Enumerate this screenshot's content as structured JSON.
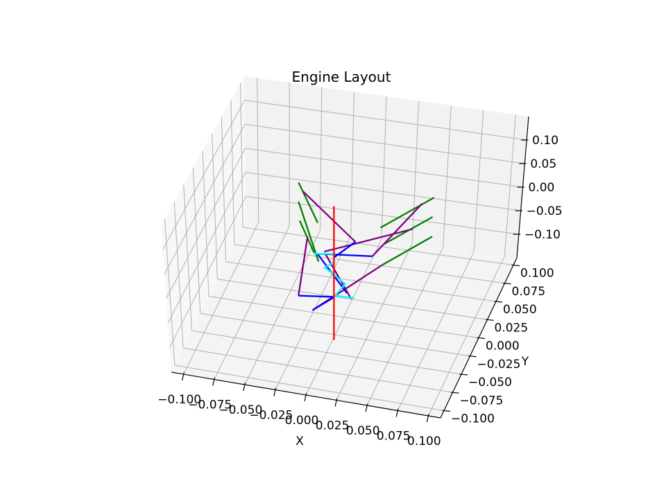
{
  "chart_data": {
    "type": "line3d",
    "title": "Engine Layout",
    "xlabel": "X",
    "ylabel": "Y",
    "zlabel": "",
    "xlim": [
      -0.11,
      0.11
    ],
    "ylim": [
      -0.11,
      0.11
    ],
    "zlim": [
      -0.15,
      0.15
    ],
    "grid": true,
    "x_ticks": [
      -0.1,
      -0.075,
      -0.05,
      -0.025,
      0.0,
      0.025,
      0.05,
      0.075,
      0.1
    ],
    "x_tick_labels": [
      "−0.100",
      "−0.075",
      "−0.050",
      "−0.025",
      "0.000",
      "0.025",
      "0.050",
      "0.075",
      "0.100"
    ],
    "y_ticks": [
      -0.1,
      -0.075,
      -0.05,
      -0.025,
      0.0,
      0.025,
      0.05,
      0.075,
      0.1
    ],
    "y_tick_labels": [
      "−0.100",
      "−0.075",
      "−0.050",
      "−0.025",
      "0.000",
      "0.025",
      "0.050",
      "0.075",
      "0.100"
    ],
    "z_ticks": [
      -0.1,
      -0.05,
      0.0,
      0.05,
      0.1
    ],
    "z_tick_labels": [
      "−0.10",
      "−0.05",
      "0.00",
      "0.05",
      "0.10"
    ],
    "series": [
      {
        "color": "#008000",
        "segments": [
          [
            [
              -0.056,
              0.112,
              0
            ],
            [
              -0.029,
              0.061,
              0
            ]
          ],
          [
            [
              -0.05,
              0.086,
              0
            ],
            [
              -0.016,
              0.008,
              0
            ]
          ],
          [
            [
              -0.043,
              0.06,
              0
            ],
            [
              -0.022,
              0.019,
              0
            ]
          ],
          [
            [
              0.019,
              0.068,
              0
            ],
            [
              0.049,
              0.121,
              0
            ]
          ],
          [
            [
              0.026,
              0.045,
              0
            ],
            [
              0.054,
              0.094,
              0
            ]
          ],
          [
            [
              0.032,
              0.017,
              0
            ],
            [
              0.06,
              0.067,
              0
            ]
          ]
        ]
      },
      {
        "color": "#800080",
        "segments": [
          [
            [
              -0.05,
              0.101,
              0
            ],
            [
              0.005,
              0.043,
              0
            ]
          ],
          [
            [
              -0.015,
              0.023,
              0
            ],
            [
              0.043,
              0.073,
              0
            ]
          ],
          [
            [
              0.022,
              0.027,
              0
            ],
            [
              0.042,
              0.11,
              0
            ]
          ],
          [
            [
              -0.032,
              0.039,
              0
            ],
            [
              -0.02,
              -0.043,
              0
            ]
          ],
          [
            [
              -0.005,
              -0.06,
              0
            ],
            [
              0.032,
              0.017,
              0
            ]
          ],
          [
            [
              -0.014,
              0.021,
              0
            ],
            [
              0.02,
              -0.036,
              0
            ]
          ]
        ]
      },
      {
        "color": "#0000ff",
        "segments": [
          [
            [
              -0.022,
              0.018,
              0
            ],
            [
              0.022,
              0.027,
              0
            ]
          ],
          [
            [
              0.005,
              0.043,
              0
            ],
            [
              -0.006,
              0.017,
              0
            ]
          ],
          [
            [
              -0.019,
              0.018,
              0
            ],
            [
              0.015,
              -0.029,
              0
            ]
          ],
          [
            [
              -0.02,
              -0.043,
              0
            ],
            [
              0.007,
              -0.037,
              0
            ]
          ],
          [
            [
              0.007,
              -0.037,
              0
            ],
            [
              -0.005,
              -0.06,
              0
            ]
          ]
        ]
      },
      {
        "color": "#00ffff",
        "segments": [
          [
            [
              -0.022,
              0.018,
              0
            ],
            [
              -0.006,
              0.022,
              0
            ]
          ],
          [
            [
              -0.004,
              0.012,
              0
            ],
            [
              -0.01,
              0.0,
              0
            ]
          ],
          [
            [
              -0.01,
              0.002,
              0
            ],
            [
              0.011,
              -0.017,
              0
            ]
          ],
          [
            [
              0.011,
              -0.017,
              0
            ],
            [
              0.007,
              -0.035,
              0
            ]
          ],
          [
            [
              0.007,
              -0.035,
              0
            ],
            [
              0.022,
              -0.034,
              0
            ]
          ]
        ]
      },
      {
        "color": "#ff0000",
        "segments": [
          [
            [
              -0.002,
              0.0,
              0.138
            ],
            [
              -0.002,
              0.0,
              -0.152
            ]
          ]
        ]
      }
    ]
  }
}
